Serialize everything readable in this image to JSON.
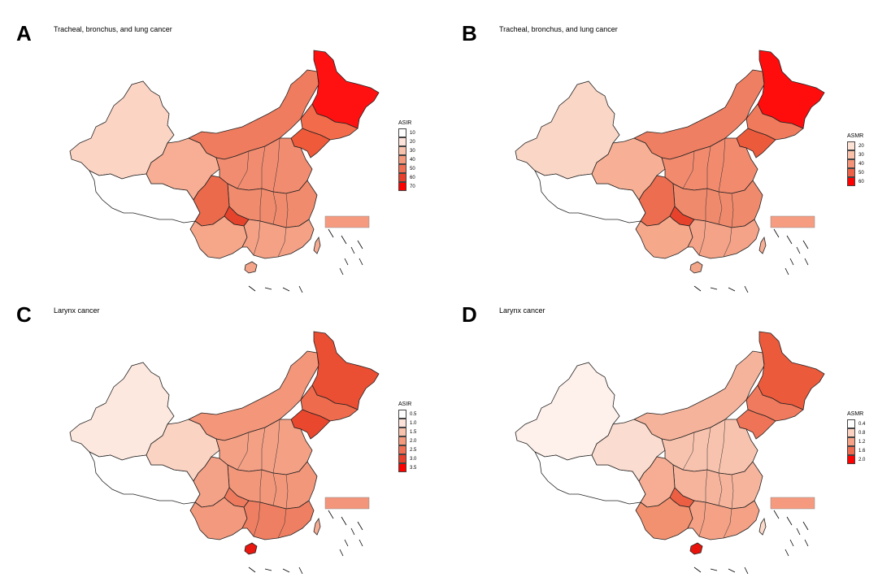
{
  "panels": [
    {
      "id": "A",
      "letter": "A",
      "title": "Tracheal, bronchus, and lung cancer",
      "legend": {
        "title": "ASIR",
        "items": [
          {
            "label": "10",
            "color": "#ffffff"
          },
          {
            "label": "20",
            "color": "#fde4da"
          },
          {
            "label": "30",
            "color": "#f9c2ad"
          },
          {
            "label": "40",
            "color": "#f5997c"
          },
          {
            "label": "50",
            "color": "#f06f53"
          },
          {
            "label": "60",
            "color": "#e8402a"
          },
          {
            "label": "70",
            "color": "#ff0000"
          }
        ]
      },
      "fills": {
        "xinjiang": "#fbd4c4",
        "tibet": "#ffffff",
        "qinghai": "#f7ae94",
        "inner_mongolia": "#ef7c5f",
        "heilongjiang": "#ff1111",
        "jilin": "#f26b4b",
        "liaoning": "#ee5a3a",
        "north": "#f28c70",
        "central": "#f08b6d",
        "sichuan": "#eb6a4c",
        "chongqing": "#e6432c",
        "southwest": "#f6a689",
        "south": "#f4a186",
        "hainan": "#f3a489",
        "taiwan": "#f6ad93",
        "inset": "#f59a7f"
      }
    },
    {
      "id": "B",
      "letter": "B",
      "title": "Tracheal, bronchus, and lung cancer",
      "legend": {
        "title": "ASMR",
        "items": [
          {
            "label": "20",
            "color": "#fde2d6"
          },
          {
            "label": "30",
            "color": "#f9c0aa"
          },
          {
            "label": "40",
            "color": "#f39478"
          },
          {
            "label": "50",
            "color": "#ec6148"
          },
          {
            "label": "60",
            "color": "#ff0000"
          }
        ]
      },
      "fills": {
        "xinjiang": "#fad6c6",
        "tibet": "#ffffff",
        "qinghai": "#f7b096",
        "inner_mongolia": "#ef7f62",
        "heilongjiang": "#ff0d0d",
        "jilin": "#f07a5c",
        "liaoning": "#ec5a3c",
        "north": "#f28a6e",
        "central": "#f08a6c",
        "sichuan": "#ec6d4f",
        "chongqing": "#e7432c",
        "southwest": "#f6a88b",
        "south": "#f4a388",
        "hainan": "#f3a68a",
        "taiwan": "#f6ae94",
        "inset": "#f59c81"
      }
    },
    {
      "id": "C",
      "letter": "C",
      "title": "Larynx cancer",
      "legend": {
        "title": "ASIR",
        "items": [
          {
            "label": "0.5",
            "color": "#ffffff"
          },
          {
            "label": "1.0",
            "color": "#fde4da"
          },
          {
            "label": "1.5",
            "color": "#f9c2ad"
          },
          {
            "label": "2.0",
            "color": "#f5997c"
          },
          {
            "label": "2.5",
            "color": "#f06f53"
          },
          {
            "label": "3.0",
            "color": "#e8402a"
          },
          {
            "label": "3.5",
            "color": "#ff0000"
          }
        ]
      },
      "fills": {
        "xinjiang": "#fde8df",
        "tibet": "#ffffff",
        "qinghai": "#fad3c3",
        "inner_mongolia": "#f3967a",
        "heilongjiang": "#ea4e33",
        "jilin": "#ee6b4d",
        "liaoning": "#e9472e",
        "north": "#f4a085",
        "central": "#f3977b",
        "sichuan": "#f4a287",
        "chongqing": "#ee7b5e",
        "southwest": "#f3997d",
        "south": "#ef7f62",
        "hainan": "#e8170f",
        "taiwan": "#f6ad93",
        "inset": "#f3957a"
      }
    },
    {
      "id": "D",
      "letter": "D",
      "title": "Larynx cancer",
      "legend": {
        "title": "ASMR",
        "items": [
          {
            "label": "0.4",
            "color": "#ffffff"
          },
          {
            "label": "0.8",
            "color": "#fbd2c2"
          },
          {
            "label": "1.2",
            "color": "#f5a287"
          },
          {
            "label": "1.6",
            "color": "#ee6a4e"
          },
          {
            "label": "2.0",
            "color": "#ff0000"
          }
        ]
      },
      "fills": {
        "xinjiang": "#fef0ea",
        "tibet": "#ffffff",
        "qinghai": "#fbdcd0",
        "inner_mongolia": "#f6b39b",
        "heilongjiang": "#ec5a3c",
        "jilin": "#f07a5d",
        "liaoning": "#ef7457",
        "north": "#f8c3ae",
        "central": "#f6b49c",
        "sichuan": "#f6ad93",
        "chongqing": "#ec5f42",
        "southwest": "#f2916f",
        "south": "#f4a186",
        "hainan": "#e8140c",
        "taiwan": "#fbd9cb",
        "inset": "#f59a7f"
      }
    }
  ]
}
